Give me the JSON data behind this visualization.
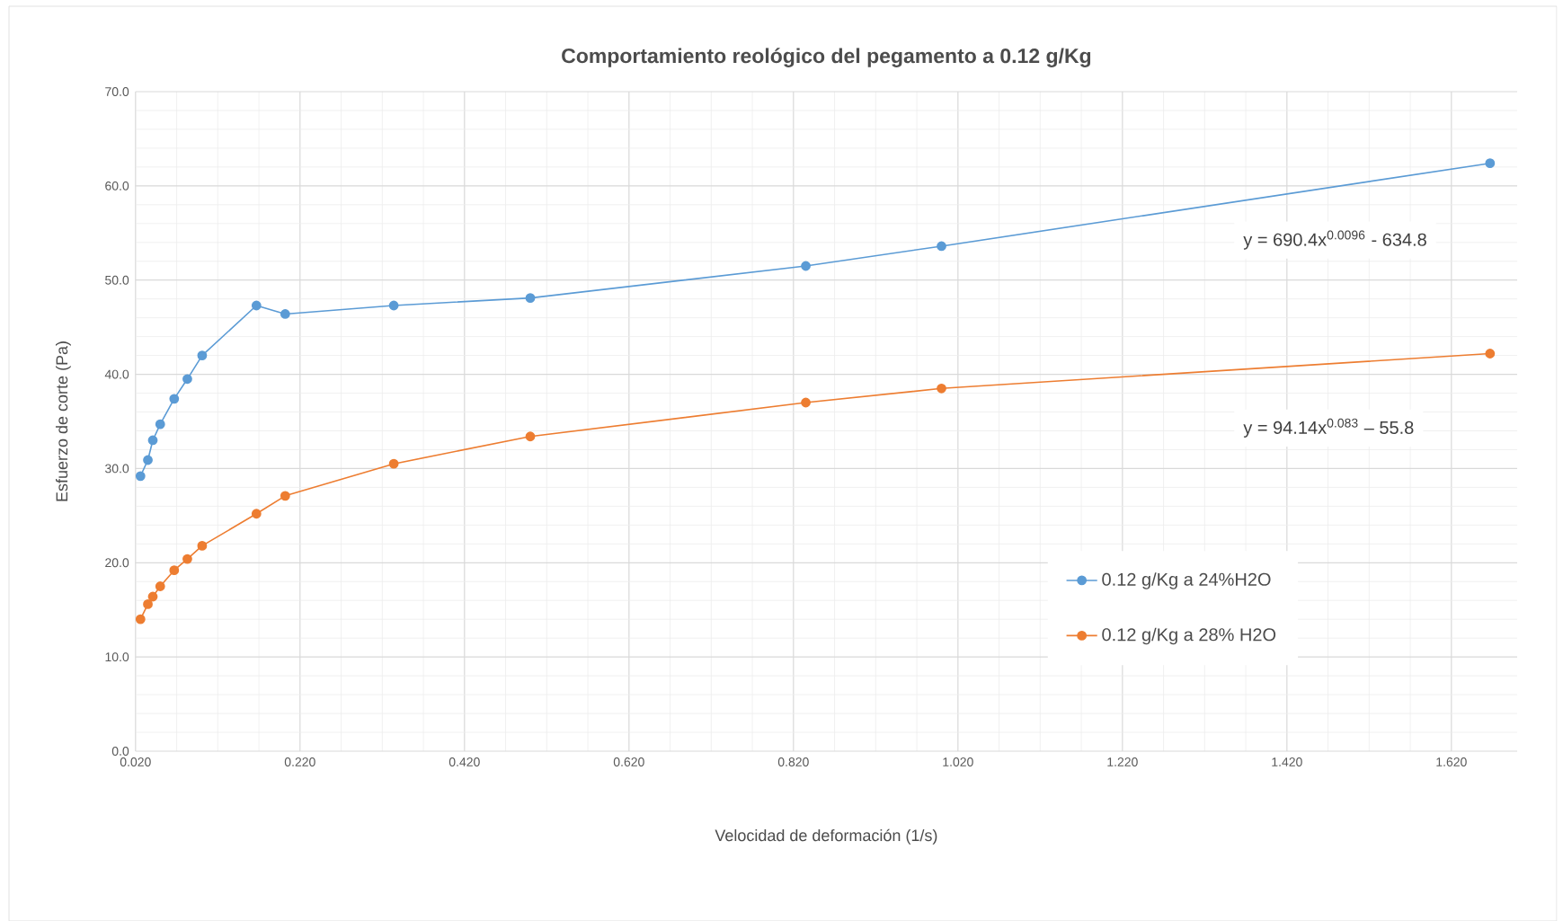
{
  "chart_data": {
    "type": "line",
    "title": "Comportamiento reológico del pegamento a  0.12 g/Kg",
    "xlabel": "Velocidad de deformación (1/s)",
    "ylabel": "Esfuerzo de corte (Pa)",
    "x": [
      0.026,
      0.035,
      0.041,
      0.05,
      0.067,
      0.083,
      0.101,
      0.167,
      0.202,
      0.334,
      0.5,
      0.835,
      1.0,
      1.667
    ],
    "series": [
      {
        "name": "0.12 g/Kg a 24%H2O",
        "color": "#5b9bd5",
        "values": [
          29.2,
          30.9,
          33.0,
          34.7,
          37.4,
          39.5,
          42.0,
          47.3,
          46.4,
          47.3,
          48.1,
          51.5,
          53.6,
          62.4
        ]
      },
      {
        "name": "0.12 g/Kg a 28% H2O",
        "color": "#ed7d31",
        "values": [
          14.0,
          15.6,
          16.4,
          17.5,
          19.2,
          20.4,
          21.8,
          25.2,
          27.1,
          30.5,
          33.4,
          37.0,
          38.5,
          42.2
        ]
      }
    ],
    "annotations": [
      "y = 690.4x$^{0.0096}$ - 634.8",
      "y = 94.14x$^{0.083}$ – 55.8"
    ],
    "xlim": [
      0.02,
      1.7
    ],
    "ylim": [
      0,
      70
    ],
    "xticks": [
      {
        "value": 0.02,
        "label": "0.020"
      },
      {
        "value": 0.22,
        "label": "0.220"
      },
      {
        "value": 0.42,
        "label": "0.420"
      },
      {
        "value": 0.62,
        "label": "0.620"
      },
      {
        "value": 0.82,
        "label": "0.820"
      },
      {
        "value": 1.02,
        "label": "1.020"
      },
      {
        "value": 1.22,
        "label": "1.220"
      },
      {
        "value": 1.42,
        "label": "1.420"
      },
      {
        "value": 1.62,
        "label": "1.620"
      }
    ],
    "yticks": [
      {
        "value": 0,
        "label": "0.0"
      },
      {
        "value": 10,
        "label": "10.0"
      },
      {
        "value": 20,
        "label": "20.0"
      },
      {
        "value": 30,
        "label": "30.0"
      },
      {
        "value": 40,
        "label": "40.0"
      },
      {
        "value": 50,
        "label": "50.0"
      },
      {
        "value": 60,
        "label": "60.0"
      },
      {
        "value": 70,
        "label": "70.0"
      }
    ],
    "grid": true,
    "legend": "right",
    "marker": "circle",
    "line_style": "solid"
  }
}
